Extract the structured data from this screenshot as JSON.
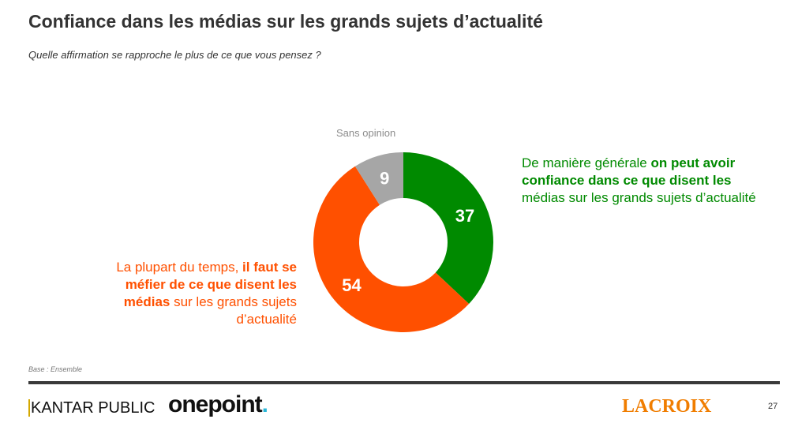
{
  "header": {
    "title": "Confiance dans les médias sur les grands sujets d’actualité",
    "subtitle": "Quelle affirmation se rapproche le plus de ce que vous pensez ?"
  },
  "chart_data": {
    "type": "pie",
    "donut": true,
    "start": "top, clockwise",
    "slices": [
      {
        "key": "confiance",
        "value": 37,
        "color": "#008a00"
      },
      {
        "key": "mefiance",
        "value": 54,
        "color": "#ff5000"
      },
      {
        "key": "sans_opinion",
        "value": 9,
        "color": "#a6a6a6",
        "label": "Sans opinion"
      }
    ],
    "labels": {
      "confiance": {
        "p1": "De manière générale ",
        "b1": "on peut avoir confiance dans ce que disent les",
        "p2": " médias sur les grands sujets d’actualité"
      },
      "mefiance": {
        "p1": "La plupart du temps, ",
        "b1": "il faut se méfier de ce que disent les médias",
        "p2": " sur les grands sujets d’actualité"
      },
      "sans_opinion": "Sans opinion"
    }
  },
  "footer": {
    "base": "Base : Ensemble",
    "logos": {
      "kantar": "KANTAR PUBLIC",
      "onepoint": "onepoint",
      "onepoint_dot": ".",
      "lacroix": "LACROIX"
    },
    "page_number": "27"
  }
}
